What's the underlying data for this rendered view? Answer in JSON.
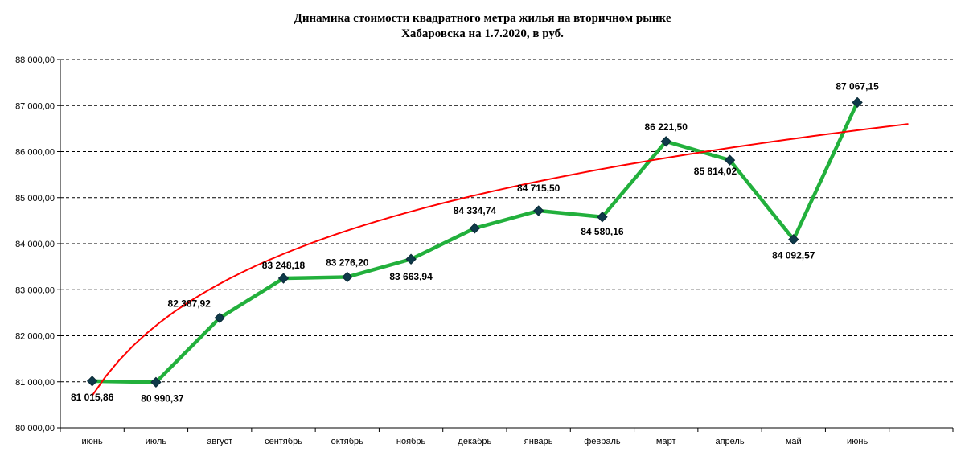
{
  "chart_data": {
    "type": "line",
    "title": [
      "Динамика стоимости квадратного метра жилья на вторичном рынке",
      "Хабаровска на 1.7.2020, в руб."
    ],
    "categories": [
      "июнь",
      "июль",
      "август",
      "сентябрь",
      "октябрь",
      "ноябрь",
      "декабрь",
      "январь",
      "февраль",
      "март",
      "апрель",
      "май",
      "июнь"
    ],
    "series": [
      {
        "values": [
          81015.86,
          80990.37,
          82387.92,
          83248.18,
          83276.2,
          83663.94,
          84334.74,
          84715.5,
          84580.16,
          86221.5,
          85814.02,
          84092.57,
          87067.15
        ],
        "labels": [
          "81 015,86",
          "80 990,37",
          "82 387,92",
          "83 248,18",
          "83 276,20",
          "83 663,94",
          "84 334,74",
          "84 715,50",
          "84 580,16",
          "86 221,50",
          "85 814,02",
          "84 092,57",
          "87 067,15"
        ],
        "color": "#22b03c",
        "marker_color": "#0f3a4a"
      }
    ],
    "trendline": {
      "type": "logarithmic",
      "color": "#ff0000",
      "start_value": 80700,
      "end_value": 86600
    },
    "ylim": [
      80000,
      88000
    ],
    "yticks": [
      80000,
      81000,
      82000,
      83000,
      84000,
      85000,
      86000,
      87000,
      88000
    ],
    "ytick_labels": [
      "80 000,00",
      "81 000,00",
      "82 000,00",
      "83 000,00",
      "84 000,00",
      "85 000,00",
      "86 000,00",
      "87 000,00",
      "88 000,00"
    ],
    "grid": "horizontal-dashed",
    "legend": "none"
  }
}
